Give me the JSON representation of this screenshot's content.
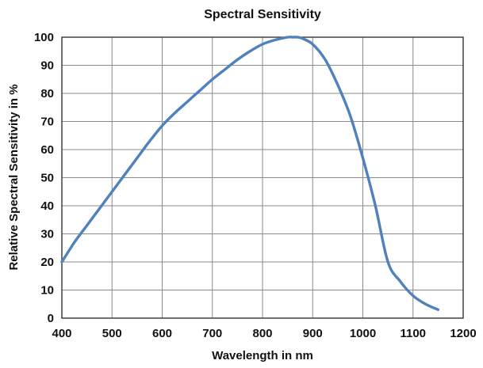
{
  "chart_data": {
    "type": "line",
    "title": "Spectral Sensitivity",
    "xlabel": "Wavelength in nm",
    "ylabel": "Relative Spectral Sensitivity in %",
    "xlim": [
      400,
      1200
    ],
    "ylim": [
      0,
      100
    ],
    "x_ticks": [
      400,
      500,
      600,
      700,
      800,
      900,
      1000,
      1100,
      1200
    ],
    "y_ticks": [
      0,
      10,
      20,
      30,
      40,
      50,
      60,
      70,
      80,
      90,
      100
    ],
    "grid": true,
    "line_color": "#4f81bd",
    "series": [
      {
        "x": [
          400,
          425,
          450,
          475,
          500,
          525,
          550,
          575,
          600,
          625,
          650,
          675,
          700,
          725,
          750,
          775,
          800,
          825,
          850,
          860,
          870,
          880,
          900,
          925,
          950,
          975,
          1000,
          1025,
          1050,
          1075,
          1100,
          1125,
          1150
        ],
        "y": [
          20,
          27,
          33,
          39,
          45,
          51,
          57,
          63,
          68.5,
          73,
          77,
          81,
          85,
          88.5,
          92,
          95,
          97.5,
          99,
          100,
          100,
          100,
          99.5,
          97.5,
          92,
          83,
          72,
          57,
          40,
          20,
          13,
          8,
          5,
          3
        ]
      }
    ]
  }
}
